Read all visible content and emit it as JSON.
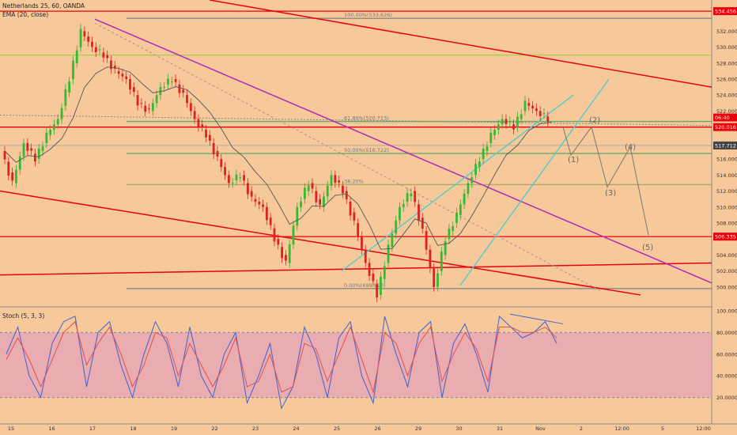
{
  "header": {
    "title": "Netherlands 25, 60, OANDA",
    "ema_label": "EMA (20, close)",
    "stoch_label": "Stoch (5, 3, 3)"
  },
  "chart_data": [
    {
      "type": "candlestick",
      "title": "Netherlands 25, 60, OANDA",
      "price_axis": {
        "ylim": [
          498.5,
          535.5
        ],
        "ticks": [
          "532.000",
          "530.000",
          "528.000",
          "526.000",
          "524.000",
          "522.000",
          "518.000",
          "516.000",
          "514.000",
          "512.000",
          "510.000",
          "508.000",
          "504.000",
          "502.000",
          "500.000"
        ]
      },
      "time_axis": {
        "ticks": [
          "15",
          "16",
          "17",
          "18",
          "19",
          "22",
          "23",
          "24",
          "25",
          "26",
          "29",
          "30",
          "31",
          "Nov",
          "2",
          "12:00",
          "5",
          "12:00"
        ]
      },
      "price_tags": [
        {
          "value": "534.456",
          "color": "#e8000b"
        },
        {
          "value": "06:40",
          "color": "#e8000b"
        },
        {
          "value": "520.016",
          "color": "#e8000b"
        },
        {
          "value": "517.712",
          "color": "#444444"
        },
        {
          "value": "506.335",
          "color": "#e8000b"
        }
      ],
      "fibonacci": [
        {
          "label": "100.00%(533.626)",
          "price": 533.6
        },
        {
          "label": "61.80%(520.713)",
          "price": 520.7
        },
        {
          "label": "50.00%(516.722)",
          "price": 516.7
        },
        {
          "label": "38.20%",
          "price": 512.8
        },
        {
          "label": "0.00%(499.810)",
          "price": 499.8
        }
      ],
      "wave_labels": [
        "(1)",
        "(2)",
        "(3)",
        "(4)",
        "(5)"
      ],
      "series": [
        {
          "name": "Price",
          "values": [
            517,
            513,
            518,
            516,
            519,
            521,
            526,
            532,
            530,
            529,
            527,
            526,
            523,
            522,
            525,
            526,
            524,
            521,
            519,
            516,
            513,
            514,
            511,
            510,
            506,
            503,
            510,
            513,
            510,
            514,
            512,
            508,
            503,
            499,
            505,
            510,
            512,
            507,
            500,
            506,
            509,
            513,
            516,
            519,
            521,
            520,
            523,
            522,
            521
          ]
        }
      ]
    },
    {
      "type": "line",
      "title": "Stoch (5, 3, 3)",
      "ylim": [
        0,
        100
      ],
      "ticks": [
        "100.0000",
        "80.0000",
        "60.0000",
        "40.0000",
        "20.0000"
      ],
      "series": [
        {
          "name": "%K",
          "values": [
            60,
            85,
            40,
            20,
            70,
            90,
            95,
            30,
            80,
            90,
            50,
            20,
            60,
            90,
            70,
            30,
            85,
            40,
            20,
            60,
            80,
            15,
            40,
            70,
            10,
            30,
            85,
            60,
            20,
            75,
            90,
            40,
            15,
            95,
            60,
            30,
            80,
            90,
            20,
            70,
            88,
            60,
            25,
            95,
            85,
            75,
            80,
            90,
            70
          ]
        },
        {
          "name": "%D",
          "values": [
            55,
            75,
            55,
            30,
            55,
            80,
            90,
            50,
            70,
            85,
            60,
            30,
            50,
            80,
            75,
            40,
            70,
            50,
            30,
            50,
            75,
            30,
            35,
            60,
            25,
            30,
            70,
            65,
            35,
            60,
            85,
            55,
            25,
            80,
            70,
            40,
            70,
            85,
            35,
            60,
            80,
            65,
            35,
            85,
            85,
            80,
            80,
            85,
            75
          ]
        }
      ]
    }
  ]
}
